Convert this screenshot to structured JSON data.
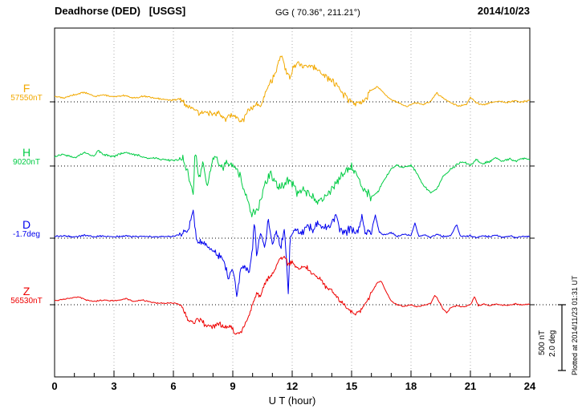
{
  "header": {
    "title": "Deadhorse (DED)   [USGS]",
    "coords": "GG ( 70.36°, 211.21°)",
    "date": "2014/10/23"
  },
  "plotted_note": "Plotted at 2014/11/23 01:31 UT",
  "scalebar": {
    "nT_label": "500 nT",
    "deg_label": "2.0 deg",
    "nT_span": 500,
    "deg_span": 2.0
  },
  "chart_data": {
    "type": "line",
    "title": "Deadhorse (DED) [USGS] magnetogram, 2014/10/23",
    "xlabel": "U T (hour)",
    "ylabel": "",
    "x_range": [
      0,
      24
    ],
    "x_ticks": [
      0,
      3,
      6,
      9,
      12,
      15,
      18,
      21,
      24
    ],
    "x_minor_step": 1,
    "grid": "dotted vertical lines at major ticks; dotted horizontal baseline for each trace",
    "note": "dev = deviation from baseline in series units (nT or deg), values estimated from plot; t in UT hours",
    "series": [
      {
        "name": "F",
        "units": "nT",
        "baseline": 57550,
        "baseline_label": "57550nT",
        "color": "#f2a900",
        "noise": {
          "base": 8,
          "storm": 20
        },
        "t": [
          0,
          0.5,
          1,
          1.5,
          2,
          2.5,
          3,
          3.5,
          4,
          4.5,
          5,
          5.5,
          6,
          6.3,
          6.6,
          7,
          7.3,
          7.6,
          8,
          8.3,
          8.6,
          8.9,
          9.2,
          9.5,
          9.7,
          10,
          10.2,
          10.4,
          10.6,
          10.8,
          11,
          11.2,
          11.4,
          11.5,
          11.7,
          11.9,
          12.1,
          12.3,
          12.6,
          12.9,
          13.2,
          13.5,
          13.8,
          14,
          14.3,
          14.6,
          14.9,
          15.2,
          15.5,
          15.8,
          16,
          16.3,
          16.6,
          16.9,
          17.2,
          17.5,
          17.8,
          18,
          18.3,
          18.6,
          19,
          19.3,
          19.6,
          20,
          20.4,
          20.8,
          21,
          21.3,
          21.6,
          22,
          22.4,
          22.8,
          23.2,
          23.6,
          24
        ],
        "dev": [
          42,
          30,
          54,
          72,
          42,
          54,
          36,
          48,
          30,
          42,
          30,
          18,
          12,
          24,
          -18,
          -48,
          -78,
          -66,
          -108,
          -78,
          -138,
          -96,
          -126,
          -150,
          -78,
          -48,
          -6,
          -30,
          42,
          132,
          162,
          252,
          330,
          342,
          234,
          192,
          282,
          294,
          270,
          282,
          252,
          222,
          174,
          162,
          114,
          54,
          6,
          -24,
          -6,
          42,
          90,
          114,
          72,
          24,
          6,
          -18,
          -36,
          -18,
          -6,
          -24,
          6,
          66,
          30,
          -6,
          -30,
          -18,
          36,
          -6,
          -24,
          -6,
          6,
          -6,
          6,
          0,
          12
        ]
      },
      {
        "name": "H",
        "units": "nT",
        "baseline": 9020,
        "baseline_label": "9020nT",
        "color": "#00cc44",
        "noise": {
          "base": 10,
          "storm": 35
        },
        "t": [
          0,
          0.5,
          1,
          1.5,
          2,
          2.2,
          2.5,
          3,
          3.5,
          4,
          4.5,
          5,
          5.5,
          6,
          6.5,
          6.9,
          7.0,
          7.1,
          7.3,
          7.5,
          7.7,
          7.9,
          8.1,
          8.4,
          8.7,
          9,
          9.3,
          9.6,
          9.9,
          10.1,
          10.3,
          10.6,
          10.9,
          11.1,
          11.4,
          11.7,
          12,
          12.3,
          12.6,
          13,
          13.3,
          13.6,
          14,
          14.3,
          14.6,
          15,
          15.3,
          15.6,
          16,
          16.3,
          16.6,
          17,
          17.3,
          17.6,
          18,
          18.3,
          18.6,
          19,
          19.3,
          19.6,
          20,
          20.3,
          20.6,
          21,
          21.3,
          21.6,
          22,
          22.3,
          22.6,
          23,
          23.3,
          23.6,
          24
        ],
        "dev": [
          72,
          90,
          60,
          102,
          72,
          114,
          84,
          72,
          102,
          90,
          66,
          60,
          48,
          42,
          54,
          -138,
          -246,
          132,
          -108,
          42,
          -168,
          12,
          72,
          -30,
          24,
          12,
          -48,
          -198,
          -348,
          -378,
          -306,
          -150,
          -54,
          -90,
          -174,
          -114,
          -144,
          -204,
          -174,
          -234,
          -264,
          -234,
          -174,
          -114,
          -54,
          -18,
          -84,
          -174,
          -234,
          -204,
          -114,
          -24,
          6,
          -12,
          6,
          -54,
          -144,
          -204,
          -174,
          -84,
          -24,
          6,
          36,
          6,
          48,
          18,
          36,
          66,
          36,
          54,
          36,
          60,
          48
        ]
      },
      {
        "name": "D",
        "units": "deg",
        "baseline": -1.7,
        "baseline_label": "-1.7deg",
        "color": "#0000ee",
        "noise": {
          "base": 0.03,
          "storm": 0.12
        },
        "t": [
          0,
          0.5,
          1,
          1.5,
          2,
          2.5,
          3,
          3.5,
          4,
          4.5,
          5,
          5.5,
          6,
          6.4,
          6.8,
          7.0,
          7.1,
          7.2,
          7.5,
          7.8,
          8.1,
          8.4,
          8.6,
          8.8,
          9.0,
          9.2,
          9.4,
          9.6,
          9.8,
          10.0,
          10.1,
          10.2,
          10.4,
          10.6,
          10.8,
          11.0,
          11.2,
          11.4,
          11.6,
          11.8,
          11.9,
          12.0,
          12.2,
          12.5,
          12.8,
          13,
          13.3,
          13.6,
          14,
          14.2,
          14.4,
          14.7,
          15,
          15.3,
          15.5,
          15.7,
          16,
          16.2,
          16.4,
          16.7,
          17,
          17.3,
          17.6,
          18,
          18.2,
          18.4,
          18.7,
          19,
          19.3,
          19.6,
          20,
          20.3,
          20.5,
          21,
          21.3,
          21.6,
          22,
          22.3,
          22.6,
          23,
          23.3,
          23.6,
          24
        ],
        "dev": [
          0.05,
          0.07,
          0.04,
          0.08,
          0.05,
          0.06,
          0.04,
          0.06,
          0.05,
          0.06,
          0.04,
          0.05,
          0.06,
          0.1,
          0.3,
          0.84,
          0.2,
          -0.07,
          -0.15,
          -0.31,
          -0.43,
          -0.6,
          -0.79,
          -1.27,
          -0.91,
          -1.7,
          -1.03,
          -0.79,
          -1.15,
          -0.31,
          0.65,
          -0.55,
          0.17,
          -0.31,
          0.53,
          -0.19,
          0.17,
          -0.31,
          0.29,
          -1.7,
          0.1,
          0.17,
          0.29,
          0.12,
          0.41,
          0.22,
          0.46,
          0.29,
          0.41,
          0.77,
          0.29,
          0.17,
          0.29,
          0.12,
          0.65,
          0.17,
          0.22,
          0.7,
          0.17,
          0.1,
          0.17,
          0.05,
          0.12,
          0.07,
          0.46,
          0.05,
          0.1,
          0.02,
          0.12,
          0.05,
          0.07,
          0.41,
          0.05,
          0.07,
          0.02,
          0.07,
          0.05,
          0.1,
          0.02,
          0.07,
          0.02,
          0.05,
          0.05
        ]
      },
      {
        "name": "Z",
        "units": "nT",
        "baseline": 56530,
        "baseline_label": "56530nT",
        "color": "#ee0000",
        "noise": {
          "base": 6,
          "storm": 18
        },
        "t": [
          0,
          0.4,
          0.8,
          1.2,
          1.6,
          2,
          2.4,
          2.8,
          3.2,
          3.6,
          4,
          4.4,
          4.8,
          5.2,
          5.6,
          6,
          6.4,
          6.7,
          7,
          7.3,
          7.6,
          8,
          8.3,
          8.6,
          8.9,
          9.1,
          9.3,
          9.5,
          9.8,
          10,
          10.2,
          10.4,
          10.6,
          10.8,
          11,
          11.2,
          11.4,
          11.6,
          11.8,
          12,
          12.3,
          12.6,
          13,
          13.3,
          13.6,
          14,
          14.3,
          14.6,
          15,
          15.2,
          15.5,
          15.8,
          16,
          16.3,
          16.5,
          16.7,
          17,
          17.3,
          17.6,
          18,
          18.3,
          18.6,
          19,
          19.2,
          19.4,
          19.6,
          19.8,
          20,
          20.3,
          20.6,
          21,
          21.2,
          21.4,
          21.7,
          22,
          22.3,
          22.6,
          23,
          23.3,
          23.6,
          24
        ],
        "dev": [
          30,
          42,
          48,
          60,
          36,
          24,
          36,
          30,
          30,
          48,
          24,
          36,
          24,
          12,
          12,
          12,
          0,
          -108,
          -132,
          -108,
          -150,
          -168,
          -138,
          -180,
          -168,
          -210,
          -228,
          -192,
          -90,
          0,
          90,
          60,
          150,
          210,
          240,
          300,
          348,
          372,
          300,
          330,
          270,
          300,
          240,
          210,
          150,
          108,
          48,
          0,
          -60,
          -78,
          -30,
          30,
          90,
          168,
          180,
          108,
          30,
          0,
          -12,
          0,
          -18,
          -6,
          12,
          72,
          30,
          -30,
          -60,
          -24,
          -6,
          -18,
          0,
          60,
          -6,
          6,
          -6,
          6,
          -6,
          0,
          6,
          0,
          6
        ]
      }
    ]
  }
}
